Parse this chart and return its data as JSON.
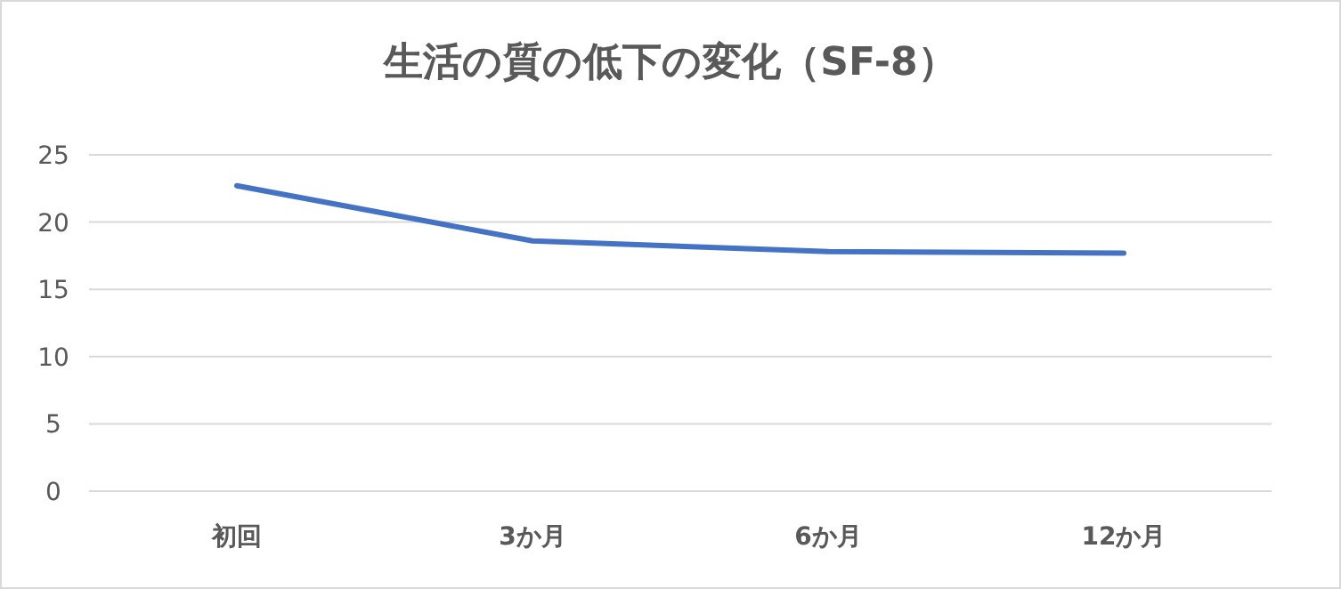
{
  "chart_data": {
    "type": "line",
    "title": "生活の質の低下の変化（SF-8）",
    "categories": [
      "初回",
      "3か月",
      "6か月",
      "12か月"
    ],
    "series": [
      {
        "color": "#4472c4",
        "values": [
          22.7,
          18.6,
          17.8,
          17.7
        ]
      }
    ],
    "ylim": [
      0,
      25
    ],
    "yticks": [
      0,
      5,
      10,
      15,
      20,
      25
    ],
    "grid": "y"
  }
}
